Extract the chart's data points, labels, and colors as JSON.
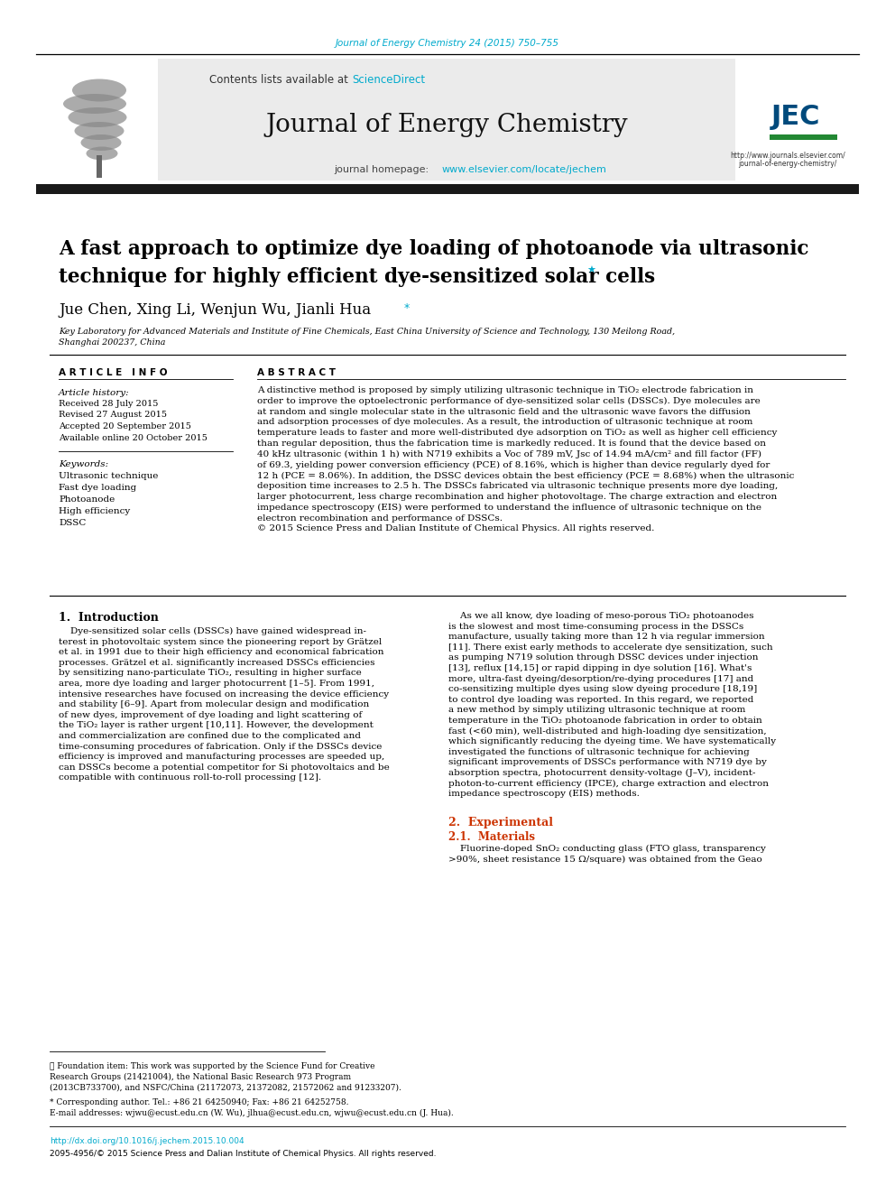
{
  "background_color": "#ffffff",
  "header_journal_ref": "Journal of Energy Chemistry 24 (2015) 750–755",
  "header_journal_color": "#00aacc",
  "sciencedirect_text": "ScienceDirect",
  "sciencedirect_color": "#00aacc",
  "journal_name": "Journal of Energy Chemistry",
  "journal_homepage_url": "www.elsevier.com/locate/jechem",
  "journal_homepage_color": "#00aacc",
  "header_bg_color": "#ebebeb",
  "black_bar_color": "#1a1a1a",
  "title_line1": "A fast approach to optimize dye loading of photoanode via ultrasonic",
  "title_line2": "technique for highly efficient dye-sensitized solar cells",
  "title_star": "★",
  "authors": "Jue Chen, Xing Li, Wenjun Wu, Jianli Hua",
  "author_star": "*",
  "aff_line1": "Key Laboratory for Advanced Materials and Institute of Fine Chemicals, East China University of Science and Technology, 130 Meilong Road,",
  "aff_line2": "Shanghai 200237, China",
  "article_info_header": "A R T I C L E   I N F O",
  "abstract_header": "A B S T R A C T",
  "article_history_label": "Article history:",
  "article_history": [
    "Received 28 July 2015",
    "Revised 27 August 2015",
    "Accepted 20 September 2015",
    "Available online 20 October 2015"
  ],
  "keywords_label": "Keywords:",
  "keywords": [
    "Ultrasonic technique",
    "Fast dye loading",
    "Photoanode",
    "High efficiency",
    "DSSC"
  ],
  "abstract_lines": [
    "A distinctive method is proposed by simply utilizing ultrasonic technique in TiO₂ electrode fabrication in",
    "order to improve the optoelectronic performance of dye-sensitized solar cells (DSSCs). Dye molecules are",
    "at random and single molecular state in the ultrasonic field and the ultrasonic wave favors the diffusion",
    "and adsorption processes of dye molecules. As a result, the introduction of ultrasonic technique at room",
    "temperature leads to faster and more well-distributed dye adsorption on TiO₂ as well as higher cell efficiency",
    "than regular deposition, thus the fabrication time is markedly reduced. It is found that the device based on",
    "40 kHz ultrasonic (within 1 h) with N719 exhibits a Voc of 789 mV, Jsc of 14.94 mA/cm² and fill factor (FF)",
    "of 69.3, yielding power conversion efficiency (PCE) of 8.16%, which is higher than device regularly dyed for",
    "12 h (PCE = 8.06%). In addition, the DSSC devices obtain the best efficiency (PCE = 8.68%) when the ultrasonic",
    "deposition time increases to 2.5 h. The DSSCs fabricated via ultrasonic technique presents more dye loading,",
    "larger photocurrent, less charge recombination and higher photovoltage. The charge extraction and electron",
    "impedance spectroscopy (EIS) were performed to understand the influence of ultrasonic technique on the",
    "electron recombination and performance of DSSCs.",
    "© 2015 Science Press and Dalian Institute of Chemical Physics. All rights reserved."
  ],
  "intro_header": "1.  Introduction",
  "intro_col1_lines": [
    "    Dye-sensitized solar cells (DSSCs) have gained widespread in-",
    "terest in photovoltaic system since the pioneering report by Grätzel",
    "et al. in 1991 due to their high efficiency and economical fabrication",
    "processes. Grätzel et al. significantly increased DSSCs efficiencies",
    "by sensitizing nano-particulate TiO₂, resulting in higher surface",
    "area, more dye loading and larger photocurrent [1–5]. From 1991,",
    "intensive researches have focused on increasing the device efficiency",
    "and stability [6–9]. Apart from molecular design and modification",
    "of new dyes, improvement of dye loading and light scattering of",
    "the TiO₂ layer is rather urgent [10,11]. However, the development",
    "and commercialization are confined due to the complicated and",
    "time-consuming procedures of fabrication. Only if the DSSCs device",
    "efficiency is improved and manufacturing processes are speeded up,",
    "can DSSCs become a potential competitor for Si photovoltaics and be",
    "compatible with continuous roll-to-roll processing [12]."
  ],
  "intro_col2_lines": [
    "    As we all know, dye loading of meso-porous TiO₂ photoanodes",
    "is the slowest and most time-consuming process in the DSSCs",
    "manufacture, usually taking more than 12 h via regular immersion",
    "[11]. There exist early methods to accelerate dye sensitization, such",
    "as pumping N719 solution through DSSC devices under injection",
    "[13], reflux [14,15] or rapid dipping in dye solution [16]. What's",
    "more, ultra-fast dyeing/desorption/re-dying procedures [17] and",
    "co-sensitizing multiple dyes using slow dyeing procedure [18,19]",
    "to control dye loading was reported. In this regard, we reported",
    "a new method by simply utilizing ultrasonic technique at room",
    "temperature in the TiO₂ photoanode fabrication in order to obtain",
    "fast (<60 min), well-distributed and high-loading dye sensitization,",
    "which significantly reducing the dyeing time. We have systematically",
    "investigated the functions of ultrasonic technique for achieving",
    "significant improvements of DSSCs performance with N719 dye by",
    "absorption spectra, photocurrent density-voltage (J–V), incident-",
    "photon-to-current efficiency (IPCE), charge extraction and electron",
    "impedance spectroscopy (EIS) methods."
  ],
  "section2_header": "2.  Experimental",
  "section21_header": "2.1.  Materials",
  "section21_lines": [
    "    Fluorine-doped SnO₂ conducting glass (FTO glass, transparency",
    ">90%, sheet resistance 15 Ω/square) was obtained from the Geao"
  ],
  "footnote_line": "★ Foundation item: This work was supported by the Science Fund for Creative",
  "footnote_line2": "Research Groups (21421004), the National Basic Research 973 Program",
  "footnote_line3": "(2013CB733700), and NSFC/China (21172073, 21372082, 21572062 and 91233207).",
  "footnote_corresponding": "* Corresponding author. Tel.: +86 21 64250940; Fax: +86 21 64252758.",
  "footnote_email": "E-mail addresses: wjwu@ecust.edu.cn (W. Wu), jlhua@ecust.edu.cn, wjwu@ecust.edu.cn (J. Hua).",
  "footnote_doi": "http://dx.doi.org/10.1016/j.jechem.2015.10.004",
  "footnote_issn": "2095-4956/© 2015 Science Press and Dalian Institute of Chemical Physics. All rights reserved.",
  "link_color": "#00aacc",
  "section_header_color": "#cc3300",
  "elsevier_color": "#E87722",
  "jec_color": "#004a7c"
}
